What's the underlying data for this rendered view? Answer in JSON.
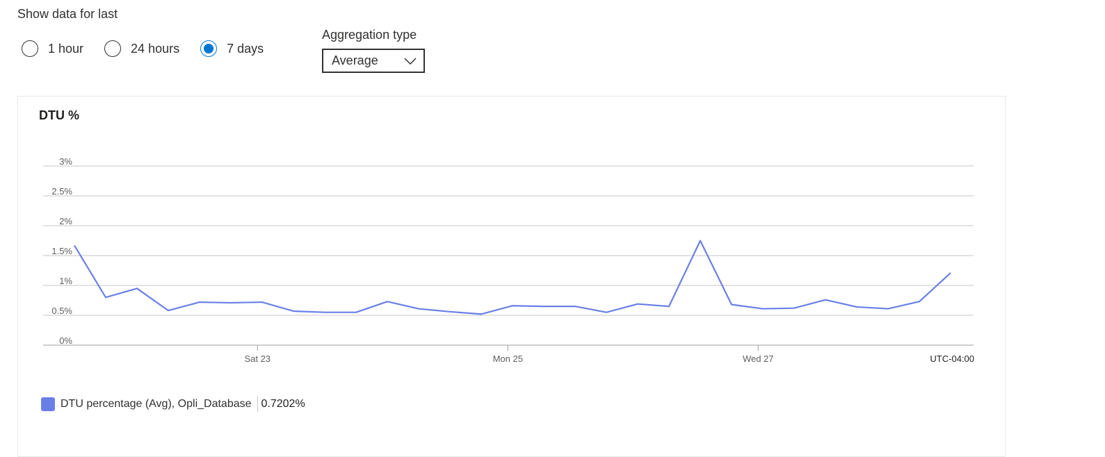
{
  "filters": {
    "show_label": "Show data for last",
    "time_options": [
      {
        "label": "1 hour",
        "selected": false
      },
      {
        "label": "24 hours",
        "selected": false
      },
      {
        "label": "7 days",
        "selected": true
      }
    ],
    "aggregation_label": "Aggregation type",
    "aggregation_value": "Average"
  },
  "chart": {
    "title": "DTU %",
    "timezone_label": "UTC-04:00",
    "legend": {
      "name": "DTU percentage (Avg), Opli_Database",
      "value": "0.7202%",
      "color": "#6a7fe6"
    }
  },
  "chart_data": {
    "type": "line",
    "title": "DTU %",
    "ylim": [
      0,
      3
    ],
    "y_ticks": [
      "0%",
      "0.5%",
      "1%",
      "1.5%",
      "2%",
      "2.5%",
      "3%"
    ],
    "y_tick_values": [
      0,
      0.5,
      1,
      1.5,
      2,
      2.5,
      3
    ],
    "x_ticks": [
      {
        "label": "Sat 23",
        "index": 5.85
      },
      {
        "label": "Mon 25",
        "index": 13.85
      },
      {
        "label": "Wed 27",
        "index": 21.85
      }
    ],
    "grid": true,
    "series": [
      {
        "name": "DTU percentage (Avg), Opli_Database",
        "color": "#6a7fe6",
        "values": [
          1.67,
          0.8,
          0.95,
          0.58,
          0.72,
          0.71,
          0.72,
          0.57,
          0.55,
          0.55,
          0.73,
          0.61,
          0.56,
          0.52,
          0.66,
          0.65,
          0.65,
          0.55,
          0.69,
          0.65,
          1.75,
          0.68,
          0.61,
          0.62,
          0.76,
          0.64,
          0.61,
          0.73,
          1.21
        ]
      }
    ]
  }
}
